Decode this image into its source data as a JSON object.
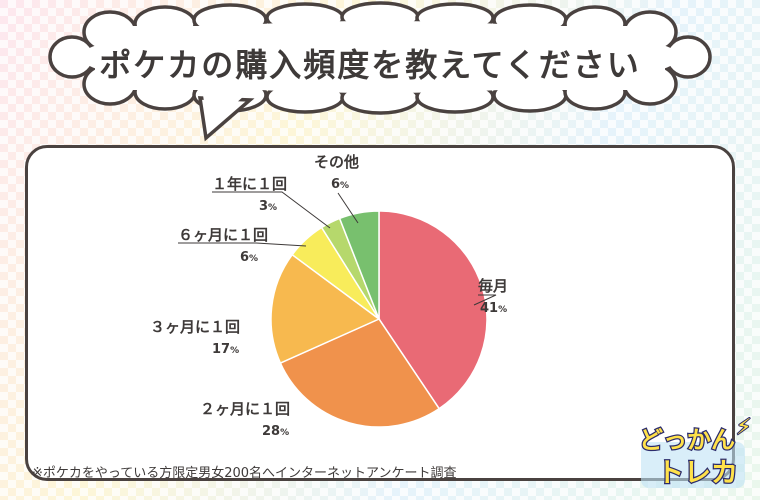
{
  "title": "ポケカの購入頻度を教えてください",
  "footnote": "※ポケカをやっている方限定男女200名へインターネットアンケート調査",
  "logo": {
    "line1": "どっかん",
    "line2": "トレカ"
  },
  "chart_data": {
    "type": "pie",
    "title": "ポケカの購入頻度を教えてください",
    "unit": "%",
    "slices": [
      {
        "label": "毎月",
        "value": 41,
        "color": "#e96a75"
      },
      {
        "label": "２ヶ月に１回",
        "value": 28,
        "color": "#f0924c"
      },
      {
        "label": "３ヶ月に１回",
        "value": 17,
        "color": "#f7b94f"
      },
      {
        "label": "６ヶ月に１回",
        "value": 6,
        "color": "#f8ec5b"
      },
      {
        "label": "１年に１回",
        "value": 3,
        "color": "#b6d86c"
      },
      {
        "label": "その他",
        "value": 6,
        "color": "#78c06e"
      }
    ]
  }
}
